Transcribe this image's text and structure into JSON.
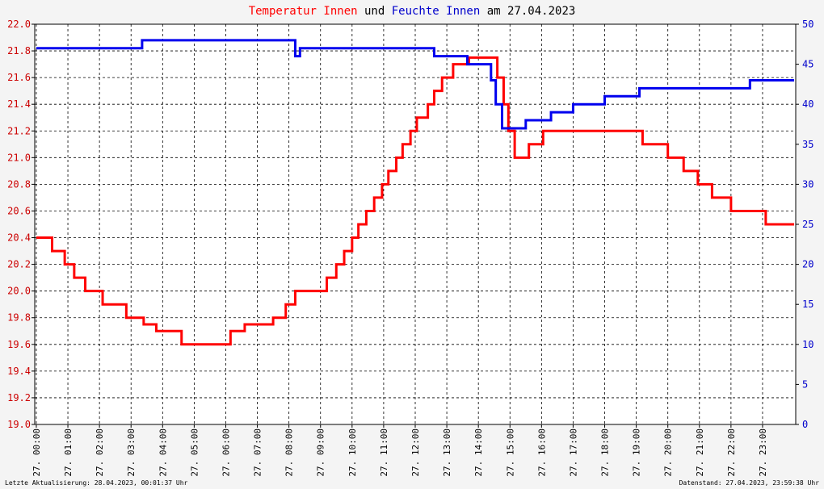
{
  "chart_data": {
    "type": "line",
    "drawstyle": "steps-post",
    "title": [
      {
        "text": "Temperatur Innen",
        "color": "#ff0000"
      },
      {
        "text": "und",
        "color": "#000000"
      },
      {
        "text": "Feuchte Innen",
        "color": "#0000cc"
      },
      {
        "text": "am 27.04.2023",
        "color": "#000000"
      }
    ],
    "footer_left": "Letzte Aktualisierung: 28.04.2023, 00:01:37 Uhr",
    "footer_right": "Datenstand: 27.04.2023, 23:59:38 Uhr",
    "grid": true,
    "xlim": [
      -0.05,
      24.05
    ],
    "xticks": [
      {
        "value": 0,
        "label": "27. 00:00"
      },
      {
        "value": 1,
        "label": "27. 01:00"
      },
      {
        "value": 2,
        "label": "27. 02:00"
      },
      {
        "value": 3,
        "label": "27. 03:00"
      },
      {
        "value": 4,
        "label": "27. 04:00"
      },
      {
        "value": 5,
        "label": "27. 05:00"
      },
      {
        "value": 6,
        "label": "27. 06:00"
      },
      {
        "value": 7,
        "label": "27. 07:00"
      },
      {
        "value": 8,
        "label": "27. 08:00"
      },
      {
        "value": 9,
        "label": "27. 09:00"
      },
      {
        "value": 10,
        "label": "27. 10:00"
      },
      {
        "value": 11,
        "label": "27. 11:00"
      },
      {
        "value": 12,
        "label": "27. 12:00"
      },
      {
        "value": 13,
        "label": "27. 13:00"
      },
      {
        "value": 14,
        "label": "27. 14:00"
      },
      {
        "value": 15,
        "label": "27. 15:00"
      },
      {
        "value": 16,
        "label": "27. 16:00"
      },
      {
        "value": 17,
        "label": "27. 17:00"
      },
      {
        "value": 18,
        "label": "27. 18:00"
      },
      {
        "value": 19,
        "label": "27. 19:00"
      },
      {
        "value": 20,
        "label": "27. 20:00"
      },
      {
        "value": 21,
        "label": "27. 21:00"
      },
      {
        "value": 22,
        "label": "27. 22:00"
      },
      {
        "value": 23,
        "label": "27. 23:00"
      }
    ],
    "ylim": [
      19.0,
      22.0
    ],
    "yticks": [
      {
        "value": 19,
        "label": "19.0"
      },
      19.2,
      19.4,
      19.6,
      19.8,
      {
        "value": 20,
        "label": "20.0"
      },
      20.2,
      20.4,
      20.6,
      20.8,
      {
        "value": 21,
        "label": "21.0"
      },
      21.2,
      21.4,
      21.6,
      21.8,
      {
        "value": 22,
        "label": "22.0"
      }
    ],
    "y2lim": [
      0,
      50
    ],
    "y2ticks": [
      0,
      5,
      10,
      15,
      20,
      25,
      30,
      35,
      40,
      45,
      50
    ],
    "series": [
      {
        "name": "Temperatur Innen",
        "color": "#ff0000",
        "x": [
          0,
          0.5,
          0.9,
          1.2,
          1.55,
          2.1,
          2.85,
          3.4,
          3.8,
          4.6,
          6.15,
          6.6,
          7.5,
          7.9,
          8.2,
          9.2,
          9.5,
          9.75,
          10.0,
          10.2,
          10.45,
          10.7,
          10.95,
          11.15,
          11.4,
          11.6,
          11.85,
          12.05,
          12.4,
          12.6,
          12.85,
          13.2,
          13.7,
          14.6,
          14.8,
          14.95,
          15.15,
          15.6,
          16.05,
          19.2,
          20.0,
          20.5,
          20.95,
          21.4,
          22.0,
          23.1,
          24
        ],
        "values": [
          20.4,
          20.3,
          20.2,
          20.1,
          20.0,
          19.9,
          19.8,
          19.75,
          19.7,
          19.6,
          19.7,
          19.75,
          19.8,
          19.9,
          20.0,
          20.1,
          20.2,
          20.3,
          20.4,
          20.5,
          20.6,
          20.7,
          20.8,
          20.9,
          21.0,
          21.1,
          21.2,
          21.3,
          21.4,
          21.5,
          21.6,
          21.7,
          21.75,
          21.6,
          21.4,
          21.2,
          21.0,
          21.1,
          21.2,
          21.1,
          21.0,
          20.9,
          20.8,
          20.7,
          20.6,
          20.5,
          20.5
        ]
      },
      {
        "name": "Feuchte Innen",
        "color": "#0000ee",
        "axis": "y2",
        "x": [
          0,
          3.35,
          8.2,
          8.35,
          12.6,
          13.65,
          14.4,
          14.55,
          14.75,
          15.5,
          16.3,
          17.0,
          18.0,
          19.1,
          22.6,
          24
        ],
        "values": [
          47,
          48,
          46,
          47,
          46,
          45,
          43,
          40,
          37,
          38,
          39,
          40,
          41,
          42,
          43,
          43
        ]
      }
    ]
  }
}
